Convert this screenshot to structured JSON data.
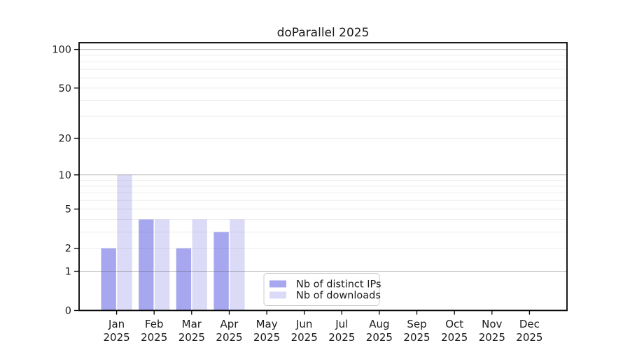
{
  "chart_data": {
    "type": "bar",
    "title": "doParallel 2025",
    "categories": [
      "Jan",
      "Feb",
      "Mar",
      "Apr",
      "May",
      "Jun",
      "Jul",
      "Aug",
      "Sep",
      "Oct",
      "Nov",
      "Dec"
    ],
    "category_year": "2025",
    "series": [
      {
        "name": "Nb of distinct IPs",
        "color": "#a7a7f0",
        "values": [
          2,
          4,
          2,
          3,
          0,
          0,
          0,
          0,
          0,
          0,
          0,
          0
        ]
      },
      {
        "name": "Nb of downloads",
        "color": "#dbdbf8",
        "values": [
          10,
          4,
          4,
          4,
          0,
          0,
          0,
          0,
          0,
          0,
          0,
          0
        ]
      }
    ],
    "y_axis": {
      "scale": "log1p",
      "tick_labels": [
        0,
        1,
        2,
        5,
        10,
        20,
        50,
        100
      ],
      "major_grid_values": [
        1,
        10,
        100
      ],
      "minor_grid_values": [
        2,
        3,
        4,
        5,
        6,
        7,
        8,
        9,
        20,
        30,
        40,
        50,
        60,
        70,
        80,
        90
      ],
      "range": [
        0,
        113
      ]
    },
    "legend": {
      "position": "lower center"
    },
    "grid": "horizontal",
    "colors": {
      "spine": "#000000",
      "major_grid": "rgba(90,90,90,0.42)",
      "minor_grid": "rgba(60,60,60,0.09)",
      "tick": "#000000",
      "text": "#1a1a1a",
      "legend_border": "#cccccc",
      "legend_fill": "#ffffff"
    }
  }
}
